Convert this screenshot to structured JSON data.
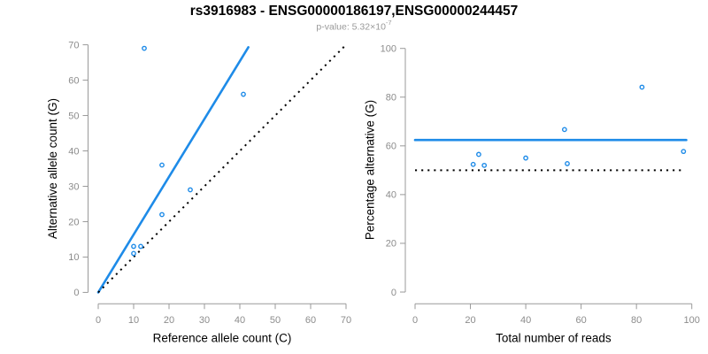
{
  "header": {
    "title": "rs3916983 - ENSG00000186197,ENSG00000244457",
    "subtitle_prefix": "p-value: 5.32×10",
    "subtitle_exponent": "-7"
  },
  "colors": {
    "accent_blue": "#1e8be8",
    "axis_gray": "#999999",
    "tick_label_gray": "#8c8c8c",
    "line_black": "#000000"
  },
  "chart_data": [
    {
      "type": "scatter",
      "title": "",
      "xlabel": "Reference allele count (C)",
      "ylabel": "Alternative allele count (G)",
      "xlim": [
        0,
        70
      ],
      "ylim": [
        0,
        70
      ],
      "xticks": [
        0,
        10,
        20,
        30,
        40,
        50,
        60,
        70
      ],
      "yticks": [
        0,
        10,
        20,
        30,
        40,
        50,
        60,
        70
      ],
      "grid": false,
      "legend": null,
      "points": [
        [
          13,
          69
        ],
        [
          41,
          56
        ],
        [
          18,
          36
        ],
        [
          26,
          29
        ],
        [
          18,
          22
        ],
        [
          10,
          13
        ],
        [
          12,
          13
        ],
        [
          10,
          11
        ]
      ],
      "lines": [
        {
          "name": "fit-line",
          "style": "solid",
          "color_key": "accent_blue",
          "x1": 0,
          "y1": 0,
          "x2": 42.4,
          "y2": 69.3
        },
        {
          "name": "identity-line",
          "style": "dotted",
          "color_key": "line_black",
          "x1": 0,
          "y1": 0,
          "x2": 70,
          "y2": 70
        }
      ]
    },
    {
      "type": "scatter",
      "title": "",
      "xlabel": "Total number of reads",
      "ylabel": "Percentage alternative (G)",
      "xlim": [
        0,
        100
      ],
      "ylim": [
        0,
        100
      ],
      "xticks": [
        0,
        20,
        40,
        60,
        80,
        100
      ],
      "yticks": [
        0,
        20,
        40,
        60,
        80,
        100
      ],
      "grid": false,
      "legend": null,
      "points": [
        [
          82,
          84.1
        ],
        [
          97,
          57.7
        ],
        [
          54,
          66.7
        ],
        [
          55,
          52.7
        ],
        [
          40,
          55.0
        ],
        [
          23,
          56.5
        ],
        [
          25,
          52.0
        ],
        [
          21,
          52.4
        ]
      ],
      "lines": [
        {
          "name": "mean-percentage-line",
          "style": "solid",
          "color_key": "accent_blue",
          "x1": 0,
          "y1": 62.4,
          "x2": 98,
          "y2": 62.4
        },
        {
          "name": "fifty-percent-line",
          "style": "dotted",
          "color_key": "line_black",
          "x1": 0,
          "y1": 50,
          "x2": 97,
          "y2": 50
        }
      ]
    }
  ]
}
